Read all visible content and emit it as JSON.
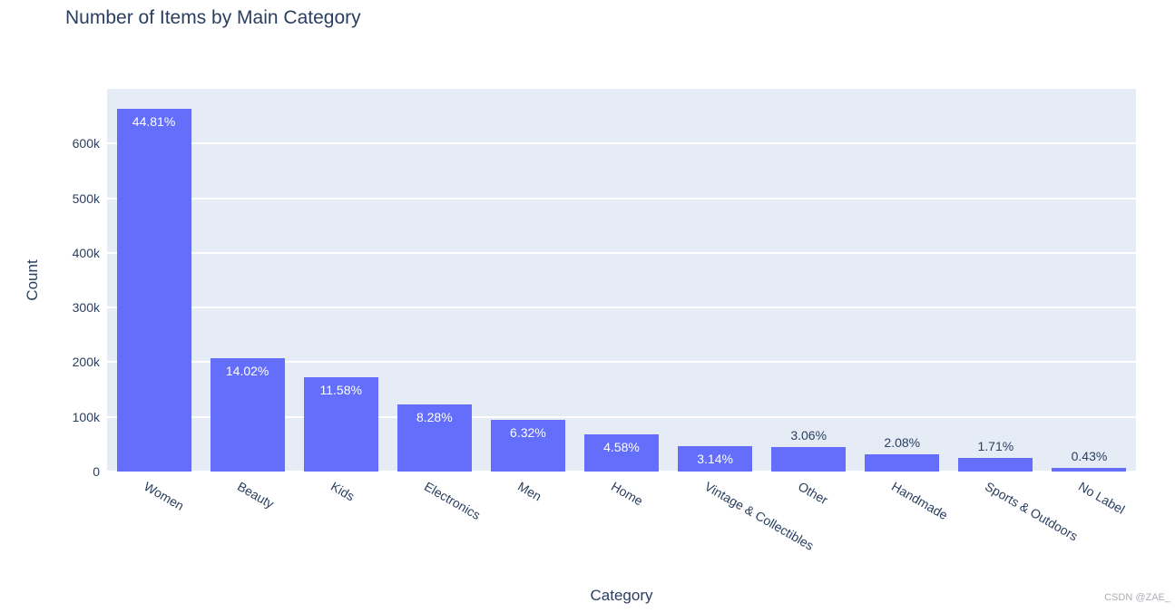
{
  "chart_data": {
    "type": "bar",
    "title": "Number of Items by Main Category",
    "xlabel": "Category",
    "ylabel": "Count",
    "categories": [
      "Women",
      "Beauty",
      "Kids",
      "Electronics",
      "Men",
      "Home",
      "Vintage & Collectibles",
      "Other",
      "Handmade",
      "Sports & Outdoors",
      "No Label"
    ],
    "values": [
      664000,
      208000,
      172000,
      123000,
      94000,
      68000,
      46500,
      45300,
      31000,
      25300,
      6300
    ],
    "bar_labels": [
      "44.81%",
      "14.02%",
      "11.58%",
      "8.28%",
      "6.32%",
      "4.58%",
      "3.14%",
      "3.06%",
      "2.08%",
      "1.71%",
      "0.43%"
    ],
    "bar_label_positions": [
      "inside",
      "inside",
      "inside",
      "inside",
      "inside",
      "inside",
      "inside",
      "outside",
      "outside",
      "outside",
      "outside"
    ],
    "ylim": [
      0,
      700000
    ],
    "yticks": [
      0,
      100000,
      200000,
      300000,
      400000,
      500000,
      600000
    ],
    "ytick_labels": [
      "0",
      "100k",
      "200k",
      "300k",
      "400k",
      "500k",
      "600k"
    ],
    "xtick_angle_deg": 30,
    "grid": true,
    "legend_position": "none",
    "colors": {
      "bar": "#636efa",
      "plot_background": "#e5ecf6",
      "gridline": "#ffffff",
      "text": "#2a3f5f",
      "bar_label_inside": "#ffffff"
    }
  },
  "watermark": "CSDN @ZAE_"
}
